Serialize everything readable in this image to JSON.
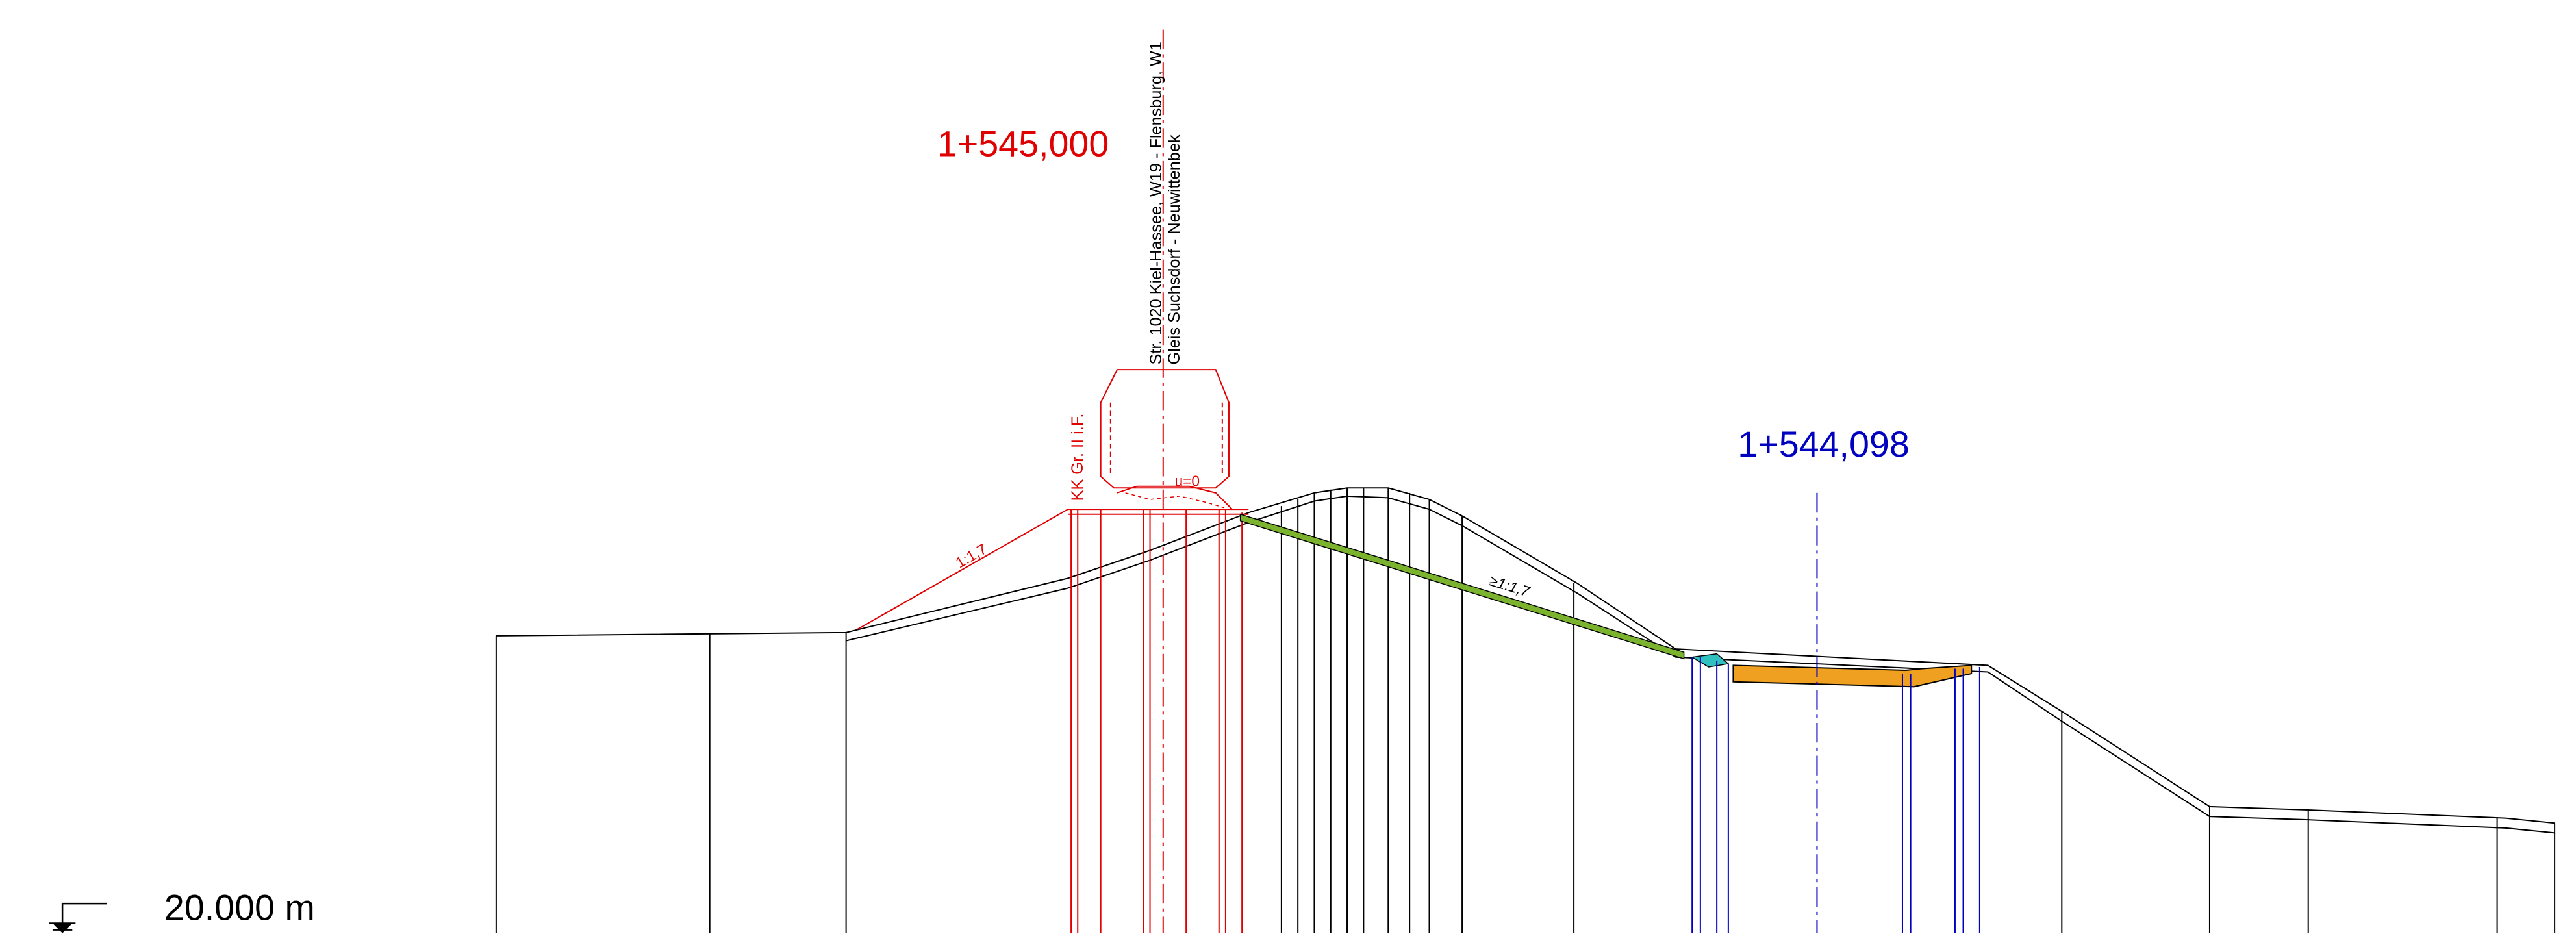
{
  "stations": {
    "left": "1+545,000",
    "right": "1+544,098"
  },
  "track_label": {
    "line1": "Str. 1020 Kiel-Hassee, W19 - Flensburg, W1",
    "line2": "Gleis Suchsdorf - Neuwittenbek"
  },
  "annotations": {
    "clearance": "KK Gr. II i.F.",
    "cant": "u=0",
    "slope_left": "1:1,7",
    "slope_right": "≥1:1,7"
  },
  "elevation": "20.000 m"
}
